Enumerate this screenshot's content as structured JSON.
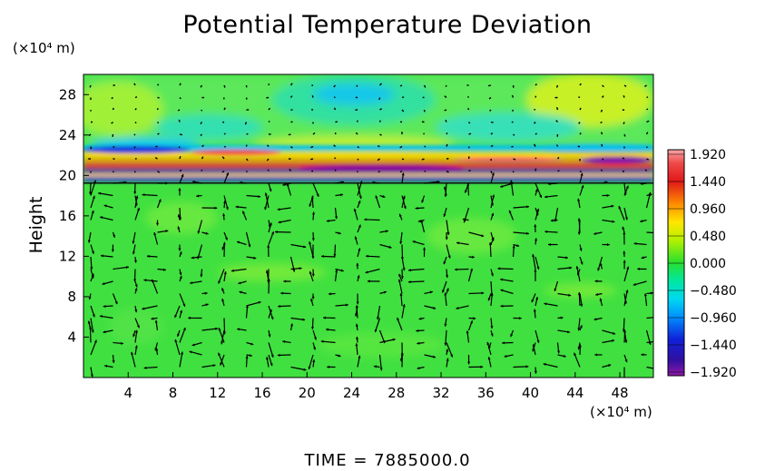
{
  "chart_data": {
    "type": "heatmap",
    "title": "Potential Temperature Deviation",
    "ylabel": "Height",
    "x_unit": "(×10⁴ m)",
    "y_unit": "(×10⁴ m)",
    "xlim": [
      0,
      51
    ],
    "ylim": [
      0,
      30
    ],
    "x_ticks": [
      "4",
      "8",
      "12",
      "16",
      "20",
      "24",
      "28",
      "32",
      "36",
      "40",
      "44",
      "48"
    ],
    "x_tick_values": [
      4,
      8,
      12,
      16,
      20,
      24,
      28,
      32,
      36,
      40,
      44,
      48
    ],
    "y_ticks": [
      "4",
      "8",
      "12",
      "16",
      "20",
      "24",
      "28"
    ],
    "y_tick_values": [
      4,
      8,
      12,
      16,
      20,
      24,
      28
    ],
    "colorbar": {
      "labels": [
        "1.920",
        "1.440",
        "0.960",
        "0.480",
        "0.000",
        "−0.480",
        "−0.960",
        "−1.440",
        "−1.920"
      ],
      "values": [
        1.92,
        1.44,
        0.96,
        0.48,
        0.0,
        -0.48,
        -0.96,
        -1.44,
        -1.92
      ]
    },
    "overlay": "velocity vectors",
    "field_description": "background near 0.1 to 0.3; strong positive/negative banded anomalies between heights 19 and 23; weak negative cell near height 28, x 22-24"
  },
  "time_label": "TIME  =  7885000.0",
  "colors": {
    "background_field": "#40e040",
    "arrow": "#000000"
  }
}
